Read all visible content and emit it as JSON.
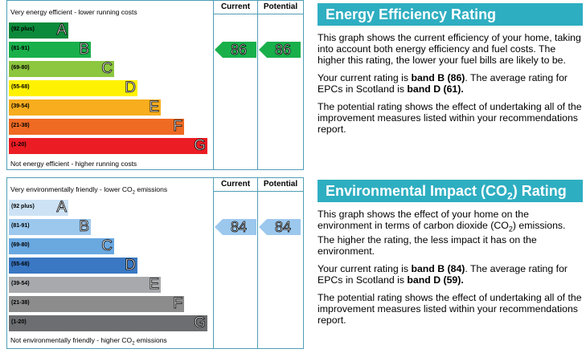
{
  "chart_data": [
    {
      "type": "bar",
      "top_caption": "Very energy efficient - lower running costs",
      "bottom_caption": "Not energy efficient - higher running costs",
      "columns": [
        "Current",
        "Potential"
      ],
      "bands": [
        {
          "letter": "A",
          "range": "(92 plus)",
          "color": "#0c8a3b"
        },
        {
          "letter": "B",
          "range": "(81-91)",
          "color": "#19b04b"
        },
        {
          "letter": "C",
          "range": "(69-80)",
          "color": "#8dc63f"
        },
        {
          "letter": "D",
          "range": "(55-68)",
          "color": "#fff200"
        },
        {
          "letter": "E",
          "range": "(39-54)",
          "color": "#f7ad1e"
        },
        {
          "letter": "F",
          "range": "(21-38)",
          "color": "#ef6a23"
        },
        {
          "letter": "G",
          "range": "(1-20)",
          "color": "#ec1c24"
        }
      ],
      "current": {
        "value": 86,
        "band": "B",
        "color": "#19b04b"
      },
      "potential": {
        "value": 86,
        "band": "B",
        "color": "#19b04b"
      }
    },
    {
      "type": "bar",
      "top_caption_pre": "Very environmentally friendly - lower CO",
      "top_caption_sub": "2",
      "top_caption_post": " emissions",
      "bottom_caption_pre": "Not environmentally friendly - higher CO",
      "bottom_caption_sub": "2",
      "bottom_caption_post": " emissions",
      "columns": [
        "Current",
        "Potential"
      ],
      "bands": [
        {
          "letter": "A",
          "range": "(92 plus)",
          "color": "#cde3f5"
        },
        {
          "letter": "B",
          "range": "(81-91)",
          "color": "#9cc8ee"
        },
        {
          "letter": "C",
          "range": "(69-80)",
          "color": "#6aa8e0"
        },
        {
          "letter": "D",
          "range": "(55-68)",
          "color": "#3a78c3"
        },
        {
          "letter": "E",
          "range": "(39-54)",
          "color": "#a7a9ac"
        },
        {
          "letter": "F",
          "range": "(21-38)",
          "color": "#8c8c8c"
        },
        {
          "letter": "G",
          "range": "(1-20)",
          "color": "#6d6e71"
        }
      ],
      "current": {
        "value": 84,
        "band": "B",
        "color": "#9cc8ee"
      },
      "potential": {
        "value": 84,
        "band": "B",
        "color": "#9cc8ee"
      }
    }
  ],
  "energy_panel": {
    "title": "Energy Efficiency Rating",
    "p1": "This graph shows the current efficiency of your home, taking into account both energy efficiency and fuel costs. The higher this rating, the lower your fuel bills are likely to be.",
    "p2_pre": "Your current rating is ",
    "p2_b1": "band B (86)",
    "p2_mid": ". The average rating for EPCs in Scotland is ",
    "p2_b2": "band D (61).",
    "p3": "The potential rating shows the effect of undertaking all of the improvement measures listed within your recommendations report."
  },
  "impact_panel": {
    "title_pre": "Environmental Impact (CO",
    "title_sub": "2",
    "title_post": ") Rating",
    "p1_pre": "This graph shows the effect of your home on the environment in terms of carbon dioxide (CO",
    "p1_sub": "2",
    "p1_post": ") emissions. The higher the rating, the less impact it has on the environment.",
    "p2_pre": "Your current rating is ",
    "p2_b1": "band B (84)",
    "p2_mid": ". The average rating for EPCs in Scotland is ",
    "p2_b2": "band D (59).",
    "p3": "The potential rating shows the effect of undertaking all of the improvement measures listed within your recommendations report."
  }
}
